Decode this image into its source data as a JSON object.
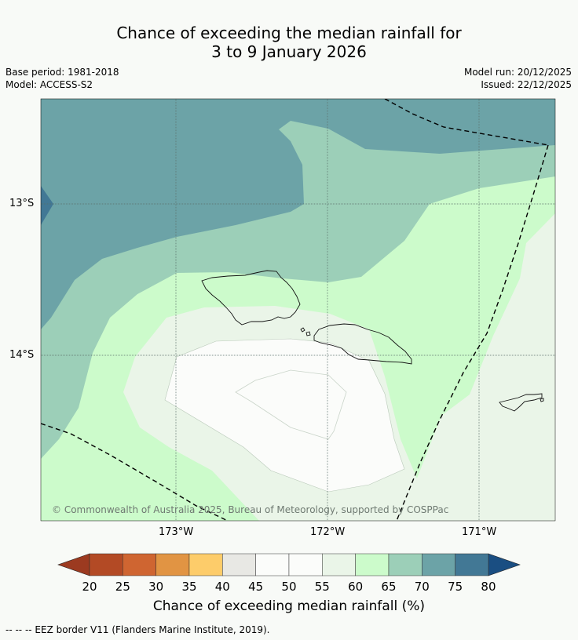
{
  "title_line1": "Chance of exceeding the median rainfall for",
  "title_line2": "3 to 9 January 2026",
  "base_period": "Base period: 1981-2018",
  "model": "Model: ACCESS-S2",
  "model_run": "Model run: 20/12/2025",
  "issued": "Issued: 22/12/2025",
  "lat_ticks": [
    "13°S",
    "14°S"
  ],
  "lon_ticks": [
    "173°W",
    "172°W",
    "171°W"
  ],
  "copyright": "© Commonwealth of Australia 2025, Bureau of Meteorology, supported by COSPPac",
  "colorbar": {
    "label": "Chance of exceeding median rainfall (%)",
    "ticks": [
      "20",
      "25",
      "30",
      "35",
      "40",
      "45",
      "50",
      "55",
      "60",
      "65",
      "70",
      "75",
      "80"
    ],
    "colors": [
      "#b34a25",
      "#cf6531",
      "#e19443",
      "#fdcc6a",
      "#e8e8e4",
      "#fbfcfa",
      "#fbfcfa",
      "#eaf5e8",
      "#ccfbcb",
      "#9ccfb8",
      "#6ca3a7",
      "#427895"
    ],
    "under_color": "#9c3a20",
    "over_color": "#1a4e82"
  },
  "footer": "--  --  -- EEZ border V11 (Flanders Marine Institute, 2019)."
}
